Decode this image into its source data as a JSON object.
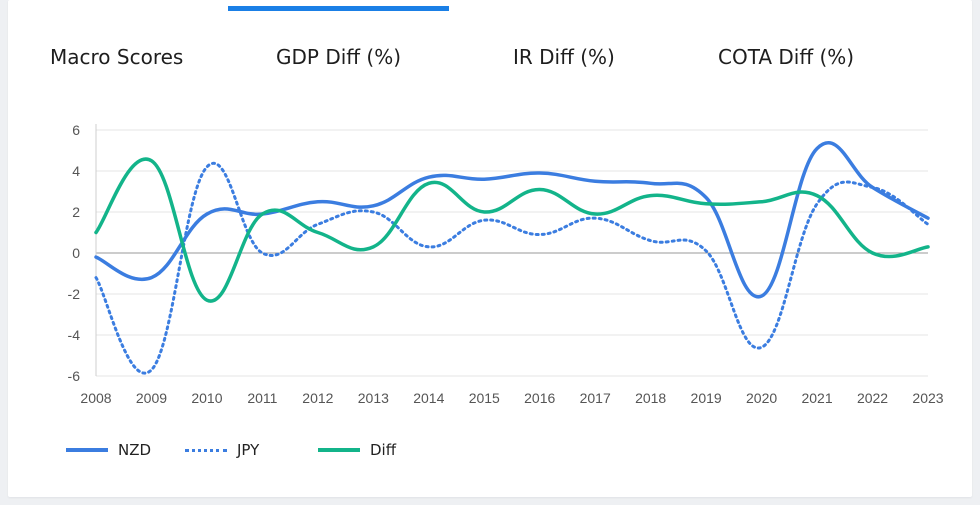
{
  "tabs": [
    {
      "label": "Macro Scores",
      "active": false
    },
    {
      "label": "GDP Diff (%)",
      "active": true
    },
    {
      "label": "IR Diff (%)",
      "active": false
    },
    {
      "label": "COTA Diff (%)",
      "active": false
    }
  ],
  "colors": {
    "accent": "#1a7fe6",
    "nzd": "#3b7de0",
    "jpy": "#3b7de0",
    "diff": "#13b48a",
    "grid": "#e4e4e4",
    "axis": "#cfcfcf",
    "tick_text": "#555555"
  },
  "chart_data": {
    "type": "line",
    "title": "",
    "xlabel": "",
    "ylabel": "",
    "x": [
      "2008",
      "2009",
      "2010",
      "2011",
      "2012",
      "2013",
      "2014",
      "2015",
      "2016",
      "2017",
      "2018",
      "2019",
      "2020",
      "2021",
      "2022",
      "2023"
    ],
    "ylim": [
      -6,
      6
    ],
    "yticks": [
      6,
      4,
      2,
      0,
      -2,
      -4,
      -6
    ],
    "grid": true,
    "legend_position": "bottom-left",
    "series": [
      {
        "name": "NZD",
        "style": "solid",
        "values": [
          -0.2,
          -1.2,
          1.9,
          1.9,
          2.5,
          2.3,
          3.7,
          3.6,
          3.9,
          3.5,
          3.4,
          2.7,
          -2.1,
          5.1,
          3.2,
          1.7
        ]
      },
      {
        "name": "JPY",
        "style": "dotted",
        "values": [
          -1.2,
          -5.7,
          4.2,
          0.0,
          1.4,
          2.0,
          0.3,
          1.6,
          0.9,
          1.7,
          0.6,
          0.1,
          -4.6,
          2.4,
          3.2,
          1.4
        ]
      },
      {
        "name": "Diff",
        "style": "solid",
        "values": [
          1.0,
          4.5,
          -2.3,
          1.9,
          1.0,
          0.3,
          3.4,
          2.0,
          3.1,
          1.9,
          2.8,
          2.4,
          2.5,
          2.8,
          0.0,
          0.3
        ]
      }
    ]
  }
}
